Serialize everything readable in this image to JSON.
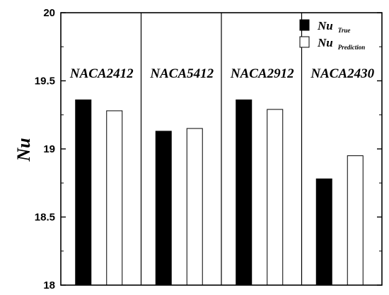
{
  "chart_data": {
    "type": "bar",
    "title": "",
    "xlabel": "",
    "ylabel": "Nu",
    "ylim": [
      18,
      20
    ],
    "yticks": [
      "18",
      "18.5",
      "19",
      "19.5",
      "20"
    ],
    "grid": false,
    "legend_position": "top-right",
    "categories": [
      "NACA2412",
      "NACA5412",
      "NACA2912",
      "NACA2430"
    ],
    "series": [
      {
        "name": "Nu",
        "subscript": "True",
        "color": "#000000",
        "values": [
          19.36,
          19.13,
          19.36,
          18.78
        ]
      },
      {
        "name": "Nu",
        "subscript": "Prediction",
        "color": "#ffffff",
        "values": [
          19.28,
          19.15,
          19.29,
          18.95
        ]
      }
    ]
  }
}
